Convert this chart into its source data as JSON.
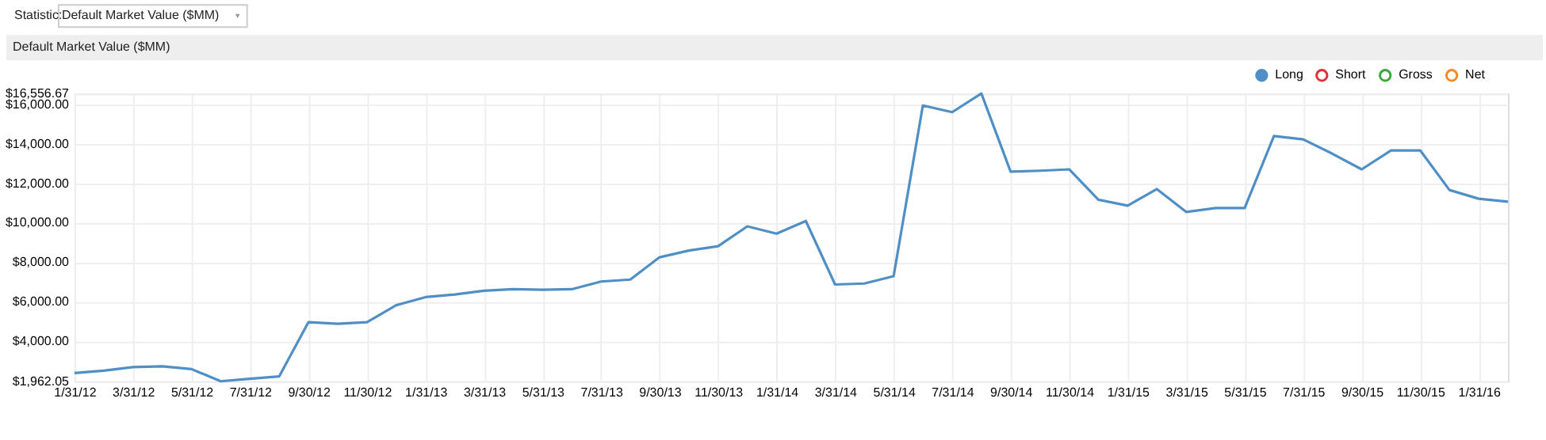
{
  "chart_data": {
    "type": "line",
    "title": "Default Market Value ($MM)",
    "annotations": [
      "Statistic:",
      "Default Market Value ($MM)"
    ],
    "categories": [
      "1/31/12",
      null,
      "3/31/12",
      null,
      "5/31/12",
      null,
      "7/31/12",
      null,
      "9/30/12",
      null,
      "11/30/12",
      null,
      "1/31/13",
      null,
      "3/31/13",
      null,
      "5/31/13",
      null,
      "7/31/13",
      null,
      "9/30/13",
      null,
      "11/30/13",
      null,
      "1/31/14",
      null,
      "3/31/14",
      null,
      "5/31/14",
      null,
      "7/31/14",
      null,
      "9/30/14",
      null,
      "11/30/14",
      null,
      "1/31/15",
      null,
      "3/31/15",
      null,
      "5/31/15",
      null,
      "7/31/15",
      null,
      "9/30/15",
      null,
      "11/30/15",
      null,
      "1/31/16",
      null
    ],
    "series": [
      {
        "name": "Long",
        "color": "#4f8fc6",
        "values": [
          2380,
          2500,
          2680,
          2720,
          2580,
          1962.05,
          2090,
          2210,
          4960,
          4880,
          4960,
          5820,
          6230,
          6360,
          6550,
          6630,
          6600,
          6630,
          7020,
          7120,
          8250,
          8590,
          8810,
          9820,
          9450,
          10090,
          6870,
          6920,
          7290,
          15950,
          15610,
          16556.67,
          12590,
          12640,
          12710,
          11170,
          10870,
          11710,
          10550,
          10750,
          10750,
          14400,
          14230,
          13500,
          12710,
          13670,
          13670,
          11660,
          11220,
          11070
        ]
      },
      {
        "name": "Short",
        "color": "#e0303a",
        "values": [
          null,
          null,
          null,
          null,
          null,
          null,
          null,
          null,
          null,
          null,
          null,
          null,
          null,
          null,
          null,
          null,
          null,
          null,
          null,
          null,
          null,
          null,
          null,
          null,
          null,
          null,
          null,
          null,
          null,
          null,
          null,
          null,
          null,
          null,
          null,
          null,
          null,
          null,
          null,
          null,
          null,
          null,
          null,
          null,
          null,
          null,
          null,
          null,
          null,
          null
        ]
      },
      {
        "name": "Gross",
        "color": "#3aa83a",
        "values": [
          null,
          null,
          null,
          null,
          null,
          null,
          null,
          null,
          null,
          null,
          null,
          null,
          null,
          null,
          null,
          null,
          null,
          null,
          null,
          null,
          null,
          null,
          null,
          null,
          null,
          null,
          null,
          null,
          null,
          null,
          null,
          null,
          null,
          null,
          null,
          null,
          null,
          null,
          null,
          null,
          null,
          null,
          null,
          null,
          null,
          null,
          null,
          null,
          null,
          null
        ]
      },
      {
        "name": "Net",
        "color": "#f08a2a",
        "values": [
          null,
          null,
          null,
          null,
          null,
          null,
          null,
          null,
          null,
          null,
          null,
          null,
          null,
          null,
          null,
          null,
          null,
          null,
          null,
          null,
          null,
          null,
          null,
          null,
          null,
          null,
          null,
          null,
          null,
          null,
          null,
          null,
          null,
          null,
          null,
          null,
          null,
          null,
          null,
          null,
          null,
          null,
          null,
          null,
          null,
          null,
          null,
          null,
          null,
          null
        ]
      }
    ],
    "ylim": [
      1962.05,
      16556.67
    ],
    "yticks": [
      {
        "value": 1962.05,
        "label": "$1,962.05"
      },
      {
        "value": 4000,
        "label": "$4,000.00"
      },
      {
        "value": 6000,
        "label": "$6,000.00"
      },
      {
        "value": 8000,
        "label": "$8,000.00"
      },
      {
        "value": 10000,
        "label": "$10,000.00"
      },
      {
        "value": 12000,
        "label": "$12,000.00"
      },
      {
        "value": 14000,
        "label": "$14,000.00"
      },
      {
        "value": 16000,
        "label": "$16,000.00"
      },
      {
        "value": 16556.67,
        "label": "$16,556.67"
      }
    ],
    "grid": true,
    "legend": "top right",
    "marker": "none",
    "line_style": "solid"
  }
}
